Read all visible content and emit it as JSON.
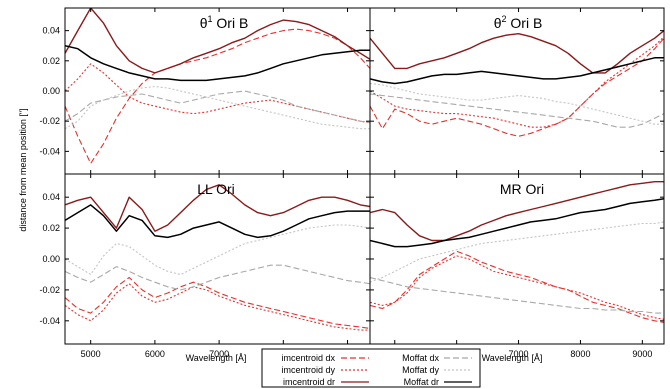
{
  "figure": {
    "xlabel": "Wavelength [Å]",
    "ylabel": "distance from mean position [\"]",
    "colors": {
      "dx": "#e8302a",
      "dy": "#e8302a",
      "dr": "#8b1a1a",
      "mdx": "#a8a8a8",
      "mdy": "#c4c4c4",
      "mdr": "#000000"
    }
  },
  "legend": {
    "entries": [
      {
        "key": "dx",
        "label": "imcentroid dx",
        "dash": "long"
      },
      {
        "key": "dy",
        "label": "imcentroid dy",
        "dash": "short"
      },
      {
        "key": "dr",
        "label": "imcentroid dr",
        "dash": "solid"
      },
      {
        "key": "mdx",
        "label": "Moffat dx",
        "dash": "long"
      },
      {
        "key": "mdy",
        "label": "Moffat dy",
        "dash": "short"
      },
      {
        "key": "mdr",
        "label": "Moffat dr",
        "dash": "solid"
      }
    ]
  },
  "chart_data": [
    {
      "type": "line",
      "title": "θ1 Ori B",
      "title_base": "θ",
      "title_sup": "1",
      "title_rest": " Ori B",
      "xlim": [
        4600,
        9350
      ],
      "ylim": [
        -0.055,
        0.055
      ],
      "xticks": [
        5000,
        6000,
        7000,
        8000,
        9000
      ],
      "yticks": [
        -0.04,
        -0.02,
        0.0,
        0.02,
        0.04
      ],
      "x": [
        4600,
        4800,
        5000,
        5200,
        5400,
        5600,
        5800,
        6000,
        6200,
        6400,
        6600,
        6800,
        7000,
        7200,
        7400,
        7600,
        7800,
        8000,
        8200,
        8400,
        8600,
        8800,
        9000,
        9200,
        9350
      ],
      "series": [
        {
          "key": "dx",
          "values": [
            -0.01,
            -0.03,
            -0.048,
            -0.035,
            -0.018,
            -0.005,
            0.005,
            0.012,
            0.015,
            0.018,
            0.02,
            0.022,
            0.025,
            0.028,
            0.032,
            0.035,
            0.038,
            0.04,
            0.041,
            0.04,
            0.038,
            0.035,
            0.03,
            0.022,
            0.015
          ]
        },
        {
          "key": "dy",
          "values": [
            0.0,
            0.008,
            0.018,
            0.012,
            0.004,
            -0.004,
            -0.008,
            -0.01,
            -0.012,
            -0.014,
            -0.015,
            -0.014,
            -0.012,
            -0.01,
            -0.008,
            -0.007,
            -0.006,
            -0.008,
            -0.01,
            -0.012,
            -0.014,
            -0.016,
            -0.018,
            -0.02,
            -0.021
          ]
        },
        {
          "key": "dr",
          "values": [
            0.025,
            0.04,
            0.055,
            0.045,
            0.03,
            0.02,
            0.015,
            0.012,
            0.015,
            0.018,
            0.022,
            0.025,
            0.028,
            0.032,
            0.035,
            0.04,
            0.044,
            0.047,
            0.046,
            0.044,
            0.04,
            0.036,
            0.03,
            0.025,
            0.021
          ]
        },
        {
          "key": "mdx",
          "values": [
            -0.02,
            -0.015,
            -0.008,
            -0.006,
            -0.004,
            -0.003,
            -0.002,
            -0.004,
            -0.006,
            -0.008,
            -0.006,
            -0.004,
            -0.002,
            -0.001,
            0.0,
            -0.002,
            -0.004,
            -0.006,
            -0.01,
            -0.012,
            -0.014,
            -0.016,
            -0.018,
            -0.02,
            -0.021
          ]
        },
        {
          "key": "mdy",
          "values": [
            -0.025,
            -0.02,
            -0.01,
            -0.006,
            -0.003,
            0.0,
            0.002,
            0.003,
            0.002,
            0.0,
            -0.002,
            -0.004,
            -0.006,
            -0.008,
            -0.01,
            -0.012,
            -0.014,
            -0.016,
            -0.018,
            -0.02,
            -0.022,
            -0.023,
            -0.024,
            -0.025,
            -0.025
          ]
        },
        {
          "key": "mdr",
          "values": [
            0.03,
            0.028,
            0.022,
            0.018,
            0.015,
            0.012,
            0.01,
            0.008,
            0.008,
            0.007,
            0.007,
            0.007,
            0.008,
            0.009,
            0.01,
            0.012,
            0.015,
            0.018,
            0.02,
            0.022,
            0.024,
            0.025,
            0.026,
            0.027,
            0.027
          ]
        }
      ]
    },
    {
      "type": "line",
      "title": "θ2 Ori B",
      "title_base": "θ",
      "title_sup": "2",
      "title_rest": " Ori B",
      "xlim": [
        4600,
        9350
      ],
      "ylim": [
        -0.055,
        0.055
      ],
      "xticks": [
        5000,
        6000,
        7000,
        8000,
        9000
      ],
      "yticks": [
        -0.04,
        -0.02,
        0.0,
        0.02,
        0.04
      ],
      "x": [
        4600,
        4800,
        5000,
        5200,
        5400,
        5600,
        5800,
        6000,
        6200,
        6400,
        6600,
        6800,
        7000,
        7200,
        7400,
        7600,
        7800,
        8000,
        8200,
        8400,
        8600,
        8800,
        9000,
        9200,
        9350
      ],
      "series": [
        {
          "key": "dx",
          "values": [
            -0.01,
            -0.025,
            -0.012,
            -0.015,
            -0.02,
            -0.022,
            -0.02,
            -0.018,
            -0.02,
            -0.022,
            -0.025,
            -0.028,
            -0.03,
            -0.028,
            -0.025,
            -0.022,
            -0.018,
            -0.01,
            -0.002,
            0.005,
            0.01,
            0.015,
            0.02,
            0.028,
            0.035
          ]
        },
        {
          "key": "dy",
          "values": [
            0.0,
            -0.005,
            -0.01,
            -0.012,
            -0.013,
            -0.014,
            -0.015,
            -0.015,
            -0.016,
            -0.017,
            -0.018,
            -0.02,
            -0.022,
            -0.024,
            -0.024,
            -0.022,
            -0.018,
            -0.01,
            -0.002,
            0.006,
            0.012,
            0.018,
            0.024,
            0.03,
            0.036
          ]
        },
        {
          "key": "dr",
          "values": [
            0.035,
            0.025,
            0.015,
            0.015,
            0.018,
            0.02,
            0.022,
            0.025,
            0.028,
            0.032,
            0.035,
            0.037,
            0.038,
            0.036,
            0.033,
            0.03,
            0.025,
            0.018,
            0.012,
            0.012,
            0.018,
            0.025,
            0.03,
            0.035,
            0.04
          ]
        },
        {
          "key": "mdx",
          "values": [
            -0.002,
            -0.003,
            -0.004,
            -0.005,
            -0.006,
            -0.007,
            -0.008,
            -0.009,
            -0.01,
            -0.011,
            -0.012,
            -0.013,
            -0.014,
            -0.015,
            -0.016,
            -0.017,
            -0.018,
            -0.019,
            -0.02,
            -0.022,
            -0.024,
            -0.024,
            -0.022,
            -0.018,
            -0.015
          ]
        },
        {
          "key": "mdy",
          "values": [
            0.005,
            0.004,
            0.002,
            0.0,
            -0.002,
            -0.003,
            -0.004,
            -0.005,
            -0.006,
            -0.006,
            -0.005,
            -0.004,
            -0.003,
            -0.004,
            -0.005,
            -0.007,
            -0.008,
            -0.01,
            -0.012,
            -0.014,
            -0.016,
            -0.018,
            -0.02,
            -0.022,
            -0.022
          ]
        },
        {
          "key": "mdr",
          "values": [
            0.008,
            0.006,
            0.005,
            0.006,
            0.008,
            0.01,
            0.011,
            0.011,
            0.012,
            0.013,
            0.012,
            0.011,
            0.01,
            0.009,
            0.008,
            0.008,
            0.009,
            0.01,
            0.012,
            0.014,
            0.016,
            0.018,
            0.02,
            0.022,
            0.022
          ]
        }
      ]
    },
    {
      "type": "line",
      "title": "LL Ori",
      "title_base": "LL Ori",
      "title_sup": "",
      "title_rest": "",
      "xlim": [
        4600,
        9350
      ],
      "ylim": [
        -0.055,
        0.055
      ],
      "xticks": [
        5000,
        6000,
        7000,
        8000,
        9000
      ],
      "yticks": [
        -0.04,
        -0.02,
        0.0,
        0.02,
        0.04
      ],
      "x": [
        4600,
        4800,
        5000,
        5200,
        5400,
        5600,
        5800,
        6000,
        6200,
        6400,
        6600,
        6800,
        7000,
        7200,
        7400,
        7600,
        7800,
        8000,
        8200,
        8400,
        8600,
        8800,
        9000,
        9200,
        9350
      ],
      "series": [
        {
          "key": "dx",
          "values": [
            -0.025,
            -0.032,
            -0.035,
            -0.028,
            -0.018,
            -0.012,
            -0.02,
            -0.025,
            -0.022,
            -0.018,
            -0.015,
            -0.018,
            -0.022,
            -0.025,
            -0.028,
            -0.03,
            -0.032,
            -0.034,
            -0.036,
            -0.038,
            -0.04,
            -0.042,
            -0.043,
            -0.044,
            -0.045
          ]
        },
        {
          "key": "dy",
          "values": [
            -0.03,
            -0.036,
            -0.04,
            -0.033,
            -0.022,
            -0.016,
            -0.024,
            -0.028,
            -0.026,
            -0.022,
            -0.018,
            -0.02,
            -0.024,
            -0.027,
            -0.03,
            -0.032,
            -0.034,
            -0.036,
            -0.038,
            -0.04,
            -0.042,
            -0.044,
            -0.045,
            -0.046,
            -0.046
          ]
        },
        {
          "key": "dr",
          "values": [
            0.035,
            0.038,
            0.04,
            0.03,
            0.02,
            0.04,
            0.032,
            0.018,
            0.022,
            0.03,
            0.038,
            0.045,
            0.048,
            0.042,
            0.035,
            0.03,
            0.028,
            0.03,
            0.034,
            0.038,
            0.04,
            0.04,
            0.038,
            0.035,
            0.034
          ]
        },
        {
          "key": "mdx",
          "values": [
            -0.008,
            -0.012,
            -0.015,
            -0.01,
            -0.005,
            -0.008,
            -0.012,
            -0.015,
            -0.018,
            -0.02,
            -0.018,
            -0.015,
            -0.012,
            -0.01,
            -0.008,
            -0.006,
            -0.004,
            -0.004,
            -0.006,
            -0.008,
            -0.01,
            -0.012,
            -0.014,
            -0.015,
            -0.016
          ]
        },
        {
          "key": "mdy",
          "values": [
            0.0,
            -0.005,
            -0.01,
            0.002,
            0.01,
            0.008,
            0.002,
            -0.004,
            -0.008,
            -0.01,
            -0.006,
            -0.002,
            0.002,
            0.006,
            0.01,
            0.012,
            0.014,
            0.016,
            0.018,
            0.02,
            0.021,
            0.022,
            0.022,
            0.021,
            0.02
          ]
        },
        {
          "key": "mdr",
          "values": [
            0.025,
            0.03,
            0.035,
            0.028,
            0.018,
            0.028,
            0.025,
            0.015,
            0.014,
            0.016,
            0.02,
            0.022,
            0.024,
            0.02,
            0.016,
            0.014,
            0.015,
            0.018,
            0.022,
            0.026,
            0.028,
            0.03,
            0.031,
            0.031,
            0.031
          ]
        }
      ]
    },
    {
      "type": "line",
      "title": "MR Ori",
      "title_base": "MR Ori",
      "title_sup": "",
      "title_rest": "",
      "xlim": [
        4600,
        9350
      ],
      "ylim": [
        -0.055,
        0.055
      ],
      "xticks": [
        5000,
        6000,
        7000,
        8000,
        9000
      ],
      "yticks": [
        -0.04,
        -0.02,
        0.0,
        0.02,
        0.04
      ],
      "x": [
        4600,
        4800,
        5000,
        5200,
        5400,
        5600,
        5800,
        6000,
        6200,
        6400,
        6600,
        6800,
        7000,
        7200,
        7400,
        7600,
        7800,
        8000,
        8200,
        8400,
        8600,
        8800,
        9000,
        9200,
        9350
      ],
      "series": [
        {
          "key": "dx",
          "values": [
            -0.03,
            -0.032,
            -0.028,
            -0.02,
            -0.01,
            -0.005,
            0.0,
            0.005,
            0.002,
            -0.002,
            -0.005,
            -0.008,
            -0.01,
            -0.012,
            -0.015,
            -0.018,
            -0.02,
            -0.024,
            -0.028,
            -0.03,
            -0.032,
            -0.035,
            -0.038,
            -0.04,
            -0.041
          ]
        },
        {
          "key": "dy",
          "values": [
            -0.028,
            -0.03,
            -0.028,
            -0.022,
            -0.012,
            -0.006,
            -0.002,
            0.002,
            0.0,
            -0.004,
            -0.008,
            -0.01,
            -0.012,
            -0.014,
            -0.016,
            -0.018,
            -0.02,
            -0.022,
            -0.025,
            -0.028,
            -0.03,
            -0.033,
            -0.036,
            -0.038,
            -0.039
          ]
        },
        {
          "key": "dr",
          "values": [
            0.03,
            0.032,
            0.03,
            0.022,
            0.015,
            0.012,
            0.012,
            0.015,
            0.018,
            0.022,
            0.025,
            0.028,
            0.03,
            0.032,
            0.034,
            0.036,
            0.038,
            0.04,
            0.042,
            0.044,
            0.046,
            0.048,
            0.049,
            0.05,
            0.05
          ]
        },
        {
          "key": "mdx",
          "values": [
            -0.012,
            -0.014,
            -0.016,
            -0.018,
            -0.019,
            -0.02,
            -0.021,
            -0.022,
            -0.023,
            -0.024,
            -0.025,
            -0.026,
            -0.027,
            -0.028,
            -0.029,
            -0.03,
            -0.031,
            -0.032,
            -0.032,
            -0.033,
            -0.033,
            -0.034,
            -0.034,
            -0.035,
            -0.035
          ]
        },
        {
          "key": "mdy",
          "values": [
            -0.015,
            -0.012,
            -0.008,
            -0.004,
            0.0,
            0.002,
            0.004,
            0.006,
            0.008,
            0.01,
            0.011,
            0.012,
            0.013,
            0.014,
            0.015,
            0.016,
            0.017,
            0.018,
            0.019,
            0.02,
            0.021,
            0.022,
            0.023,
            0.023,
            0.024
          ]
        },
        {
          "key": "mdr",
          "values": [
            0.012,
            0.01,
            0.008,
            0.008,
            0.009,
            0.01,
            0.012,
            0.013,
            0.014,
            0.016,
            0.018,
            0.02,
            0.022,
            0.024,
            0.025,
            0.026,
            0.028,
            0.03,
            0.031,
            0.032,
            0.034,
            0.036,
            0.037,
            0.038,
            0.039
          ]
        }
      ]
    }
  ]
}
